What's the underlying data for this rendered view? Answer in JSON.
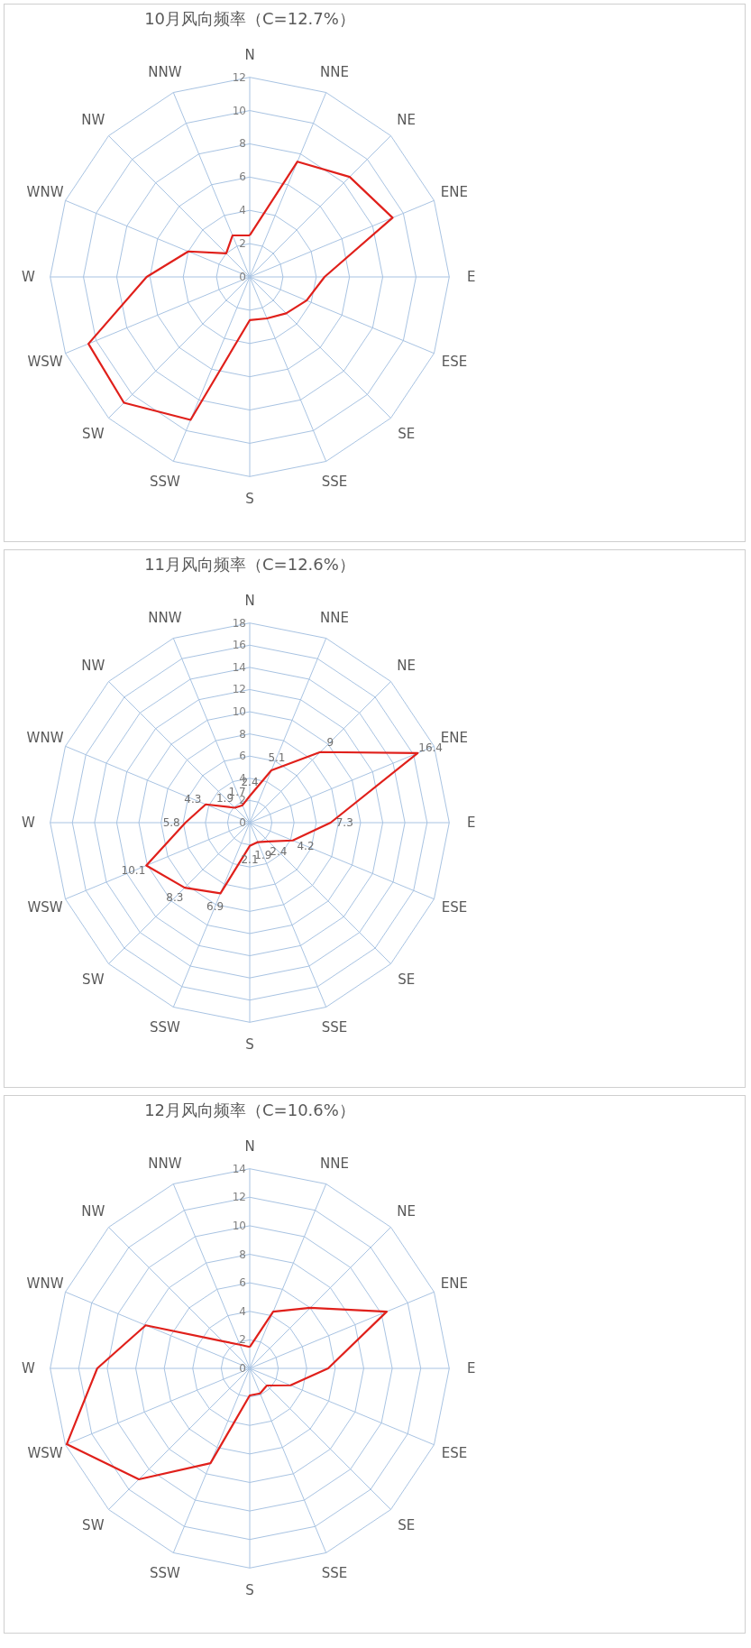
{
  "chart_data": [
    {
      "type": "radar",
      "title": "10月风向频率（C=12.7%）",
      "categories": [
        "N",
        "NNE",
        "NE",
        "ENE",
        "E",
        "ESE",
        "SE",
        "SSE",
        "S",
        "SSW",
        "SW",
        "WSW",
        "W",
        "WNW",
        "NW",
        "NNW"
      ],
      "ylim": [
        0,
        12
      ],
      "yticks": [
        0,
        2,
        4,
        6,
        8,
        10,
        12
      ],
      "grid": true,
      "series": [
        {
          "color": "#e0201b",
          "values": [
            2.5,
            7.5,
            8.5,
            9.3,
            4.5,
            3.7,
            3.1,
            2.7,
            2.6,
            9.3,
            10.7,
            10.5,
            6.2,
            4.0,
            2.0,
            2.7
          ]
        }
      ]
    },
    {
      "type": "radar",
      "title": "11月风向频率（C=12.6%）",
      "categories": [
        "N",
        "NNE",
        "NE",
        "ENE",
        "E",
        "ESE",
        "SE",
        "SSE",
        "S",
        "SSW",
        "SW",
        "WSW",
        "W",
        "WNW",
        "NW",
        "NNW"
      ],
      "ylim": [
        0,
        18
      ],
      "yticks": [
        0,
        2,
        4,
        6,
        8,
        10,
        12,
        14,
        16,
        18
      ],
      "grid": true,
      "data_labels": true,
      "series": [
        {
          "color": "#e0201b",
          "values": [
            2.4,
            5.1,
            9,
            16.4,
            7.3,
            4.2,
            2.4,
            1.9,
            2.1,
            6.9,
            8.3,
            10.1,
            5.8,
            4.3,
            1.9,
            1.7
          ]
        }
      ]
    },
    {
      "type": "radar",
      "title": "12月风向频率（C=10.6%）",
      "categories": [
        "N",
        "NNE",
        "NE",
        "ENE",
        "E",
        "ESE",
        "SE",
        "SSE",
        "S",
        "SSW",
        "SW",
        "WSW",
        "W",
        "WNW",
        "NW",
        "NNW"
      ],
      "ylim": [
        0,
        14
      ],
      "yticks": [
        0,
        2,
        4,
        6,
        8,
        10,
        12,
        14
      ],
      "grid": true,
      "series": [
        {
          "color": "#e0201b",
          "values": [
            1.5,
            4.3,
            6.0,
            10.4,
            5.5,
            3.1,
            1.7,
            1.9,
            1.9,
            7.2,
            11.0,
            13.9,
            10.7,
            7.9,
            2.7,
            1.8
          ]
        }
      ]
    }
  ]
}
